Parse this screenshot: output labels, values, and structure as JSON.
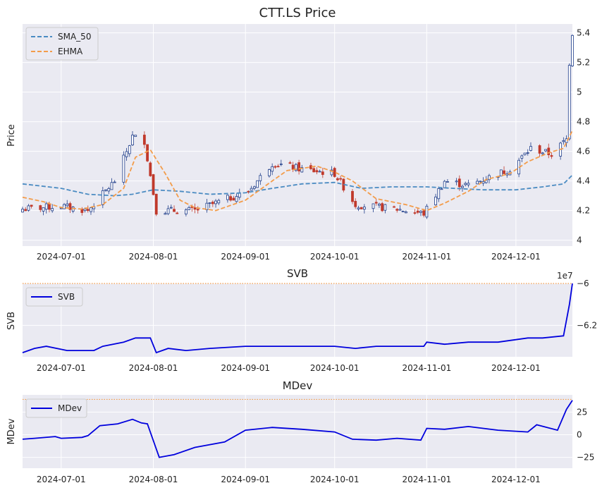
{
  "chart_data": [
    {
      "type": "candlestick",
      "title": "CTT.LS Price",
      "xlabel": "",
      "ylabel": "Price",
      "x_range": [
        "2024-06-18",
        "2024-12-20"
      ],
      "x_ticks": [
        "2024-07-01",
        "2024-08-01",
        "2024-09-01",
        "2024-10-01",
        "2024-11-01",
        "2024-12-01"
      ],
      "ylim": [
        3.96,
        5.46
      ],
      "y_ticks": [
        4.0,
        4.2,
        4.4,
        4.6,
        4.8,
        5.0,
        5.2,
        5.4
      ],
      "y_axis_side": "right",
      "grid": true,
      "legend_position": "top-left",
      "up_color": "#1f3d8a",
      "down_color": "#c0392b",
      "candles_summary": {
        "x": [
          "2024-06-18",
          "2024-07-01",
          "2024-07-10",
          "2024-07-19",
          "2024-07-25",
          "2024-07-29",
          "2024-08-02",
          "2024-08-15",
          "2024-09-02",
          "2024-09-10",
          "2024-09-20",
          "2024-10-01",
          "2024-10-08",
          "2024-10-22",
          "2024-10-31",
          "2024-11-07",
          "2024-11-15",
          "2024-11-29",
          "2024-12-06",
          "2024-12-13",
          "2024-12-18",
          "2024-12-19",
          "2024-12-20"
        ],
        "close": [
          4.21,
          4.23,
          4.2,
          4.4,
          4.7,
          4.67,
          4.2,
          4.2,
          4.33,
          4.52,
          4.48,
          4.45,
          4.24,
          4.21,
          4.18,
          4.4,
          4.37,
          4.48,
          4.62,
          4.58,
          4.68,
          5.2,
          5.4
        ]
      },
      "series": [
        {
          "name": "SMA_50",
          "color": "#4a8bc2",
          "style": "dashed",
          "x": [
            "2024-06-18",
            "2024-07-01",
            "2024-07-10",
            "2024-07-19",
            "2024-07-25",
            "2024-08-01",
            "2024-08-10",
            "2024-08-20",
            "2024-09-01",
            "2024-09-10",
            "2024-09-20",
            "2024-10-01",
            "2024-10-10",
            "2024-10-20",
            "2024-11-01",
            "2024-11-10",
            "2024-11-20",
            "2024-12-01",
            "2024-12-10",
            "2024-12-17",
            "2024-12-20"
          ],
          "values": [
            4.38,
            4.35,
            4.31,
            4.3,
            4.31,
            4.34,
            4.33,
            4.31,
            4.32,
            4.35,
            4.38,
            4.39,
            4.35,
            4.36,
            4.36,
            4.35,
            4.34,
            4.34,
            4.36,
            4.38,
            4.44
          ]
        },
        {
          "name": "EHMA",
          "color": "#f39c4a",
          "style": "dashed",
          "x": [
            "2024-06-18",
            "2024-06-25",
            "2024-07-01",
            "2024-07-08",
            "2024-07-15",
            "2024-07-22",
            "2024-07-26",
            "2024-07-31",
            "2024-08-05",
            "2024-08-10",
            "2024-08-15",
            "2024-08-22",
            "2024-09-01",
            "2024-09-10",
            "2024-09-15",
            "2024-09-25",
            "2024-10-01",
            "2024-10-07",
            "2024-10-15",
            "2024-10-25",
            "2024-11-01",
            "2024-11-07",
            "2024-11-15",
            "2024-11-21",
            "2024-11-29",
            "2024-12-05",
            "2024-12-12",
            "2024-12-17",
            "2024-12-20"
          ],
          "values": [
            4.29,
            4.26,
            4.22,
            4.21,
            4.24,
            4.35,
            4.56,
            4.61,
            4.45,
            4.27,
            4.22,
            4.2,
            4.27,
            4.4,
            4.47,
            4.5,
            4.46,
            4.4,
            4.28,
            4.24,
            4.2,
            4.25,
            4.33,
            4.41,
            4.45,
            4.53,
            4.59,
            4.62,
            4.74
          ]
        }
      ]
    },
    {
      "type": "line",
      "title": "SVB",
      "xlabel": "",
      "ylabel": "SVB",
      "offset_text": "1e7",
      "x_range": [
        "2024-06-18",
        "2024-12-20"
      ],
      "x_ticks": [
        "2024-07-01",
        "2024-08-01",
        "2024-09-01",
        "2024-10-01",
        "2024-11-01",
        "2024-12-01"
      ],
      "ylim": [
        -6.35,
        -6.0
      ],
      "y_ticks": [
        -6.2,
        -6.0
      ],
      "y_axis_side": "right",
      "grid": true,
      "legend_position": "top-left",
      "reference_line": {
        "value": -6.0,
        "color": "#f39c4a",
        "style": "dotted"
      },
      "series": [
        {
          "name": "SVB",
          "color": "#0000dd",
          "x": [
            "2024-06-18",
            "2024-06-22",
            "2024-06-26",
            "2024-07-03",
            "2024-07-12",
            "2024-07-15",
            "2024-07-22",
            "2024-07-26",
            "2024-07-29",
            "2024-07-31",
            "2024-08-02",
            "2024-08-06",
            "2024-08-12",
            "2024-08-20",
            "2024-09-01",
            "2024-09-05",
            "2024-09-15",
            "2024-09-25",
            "2024-10-01",
            "2024-10-08",
            "2024-10-15",
            "2024-10-22",
            "2024-10-31",
            "2024-11-01",
            "2024-11-07",
            "2024-11-15",
            "2024-11-25",
            "2024-12-05",
            "2024-12-10",
            "2024-12-17",
            "2024-12-19",
            "2024-12-20"
          ],
          "values": [
            -6.33,
            -6.31,
            -6.3,
            -6.32,
            -6.32,
            -6.3,
            -6.28,
            -6.26,
            -6.26,
            -6.26,
            -6.33,
            -6.31,
            -6.32,
            -6.31,
            -6.3,
            -6.3,
            -6.3,
            -6.3,
            -6.3,
            -6.31,
            -6.3,
            -6.3,
            -6.3,
            -6.28,
            -6.29,
            -6.28,
            -6.28,
            -6.26,
            -6.26,
            -6.25,
            -6.1,
            -6.0
          ]
        }
      ]
    },
    {
      "type": "line",
      "title": "MDev",
      "xlabel": "",
      "ylabel": "MDev",
      "x_range": [
        "2024-06-18",
        "2024-12-20"
      ],
      "x_ticks": [
        "2024-07-01",
        "2024-08-01",
        "2024-09-01",
        "2024-10-01",
        "2024-11-01",
        "2024-12-01"
      ],
      "ylim": [
        -37,
        44
      ],
      "y_ticks": [
        -25,
        0,
        25
      ],
      "y_axis_side": "right",
      "grid": true,
      "legend_position": "top-left",
      "reference_line": {
        "value": 39,
        "color": "#f39c4a",
        "style": "dotted"
      },
      "series": [
        {
          "name": "MDev",
          "color": "#0000dd",
          "x": [
            "2024-06-18",
            "2024-06-22",
            "2024-06-29",
            "2024-07-01",
            "2024-07-08",
            "2024-07-10",
            "2024-07-14",
            "2024-07-20",
            "2024-07-25",
            "2024-07-28",
            "2024-07-30",
            "2024-08-03",
            "2024-08-08",
            "2024-08-15",
            "2024-08-25",
            "2024-09-01",
            "2024-09-10",
            "2024-09-20",
            "2024-10-01",
            "2024-10-07",
            "2024-10-15",
            "2024-10-22",
            "2024-10-30",
            "2024-11-01",
            "2024-11-07",
            "2024-11-15",
            "2024-11-25",
            "2024-12-05",
            "2024-12-08",
            "2024-12-15",
            "2024-12-18",
            "2024-12-20"
          ],
          "values": [
            -5,
            -4,
            -2,
            -4,
            -3,
            -1,
            10,
            12,
            17,
            13,
            12,
            -25,
            -22,
            -14,
            -8,
            5,
            8,
            6,
            3,
            -5,
            -6,
            -4,
            -6,
            7,
            6,
            9,
            5,
            3,
            11,
            5,
            28,
            38
          ]
        }
      ]
    }
  ]
}
